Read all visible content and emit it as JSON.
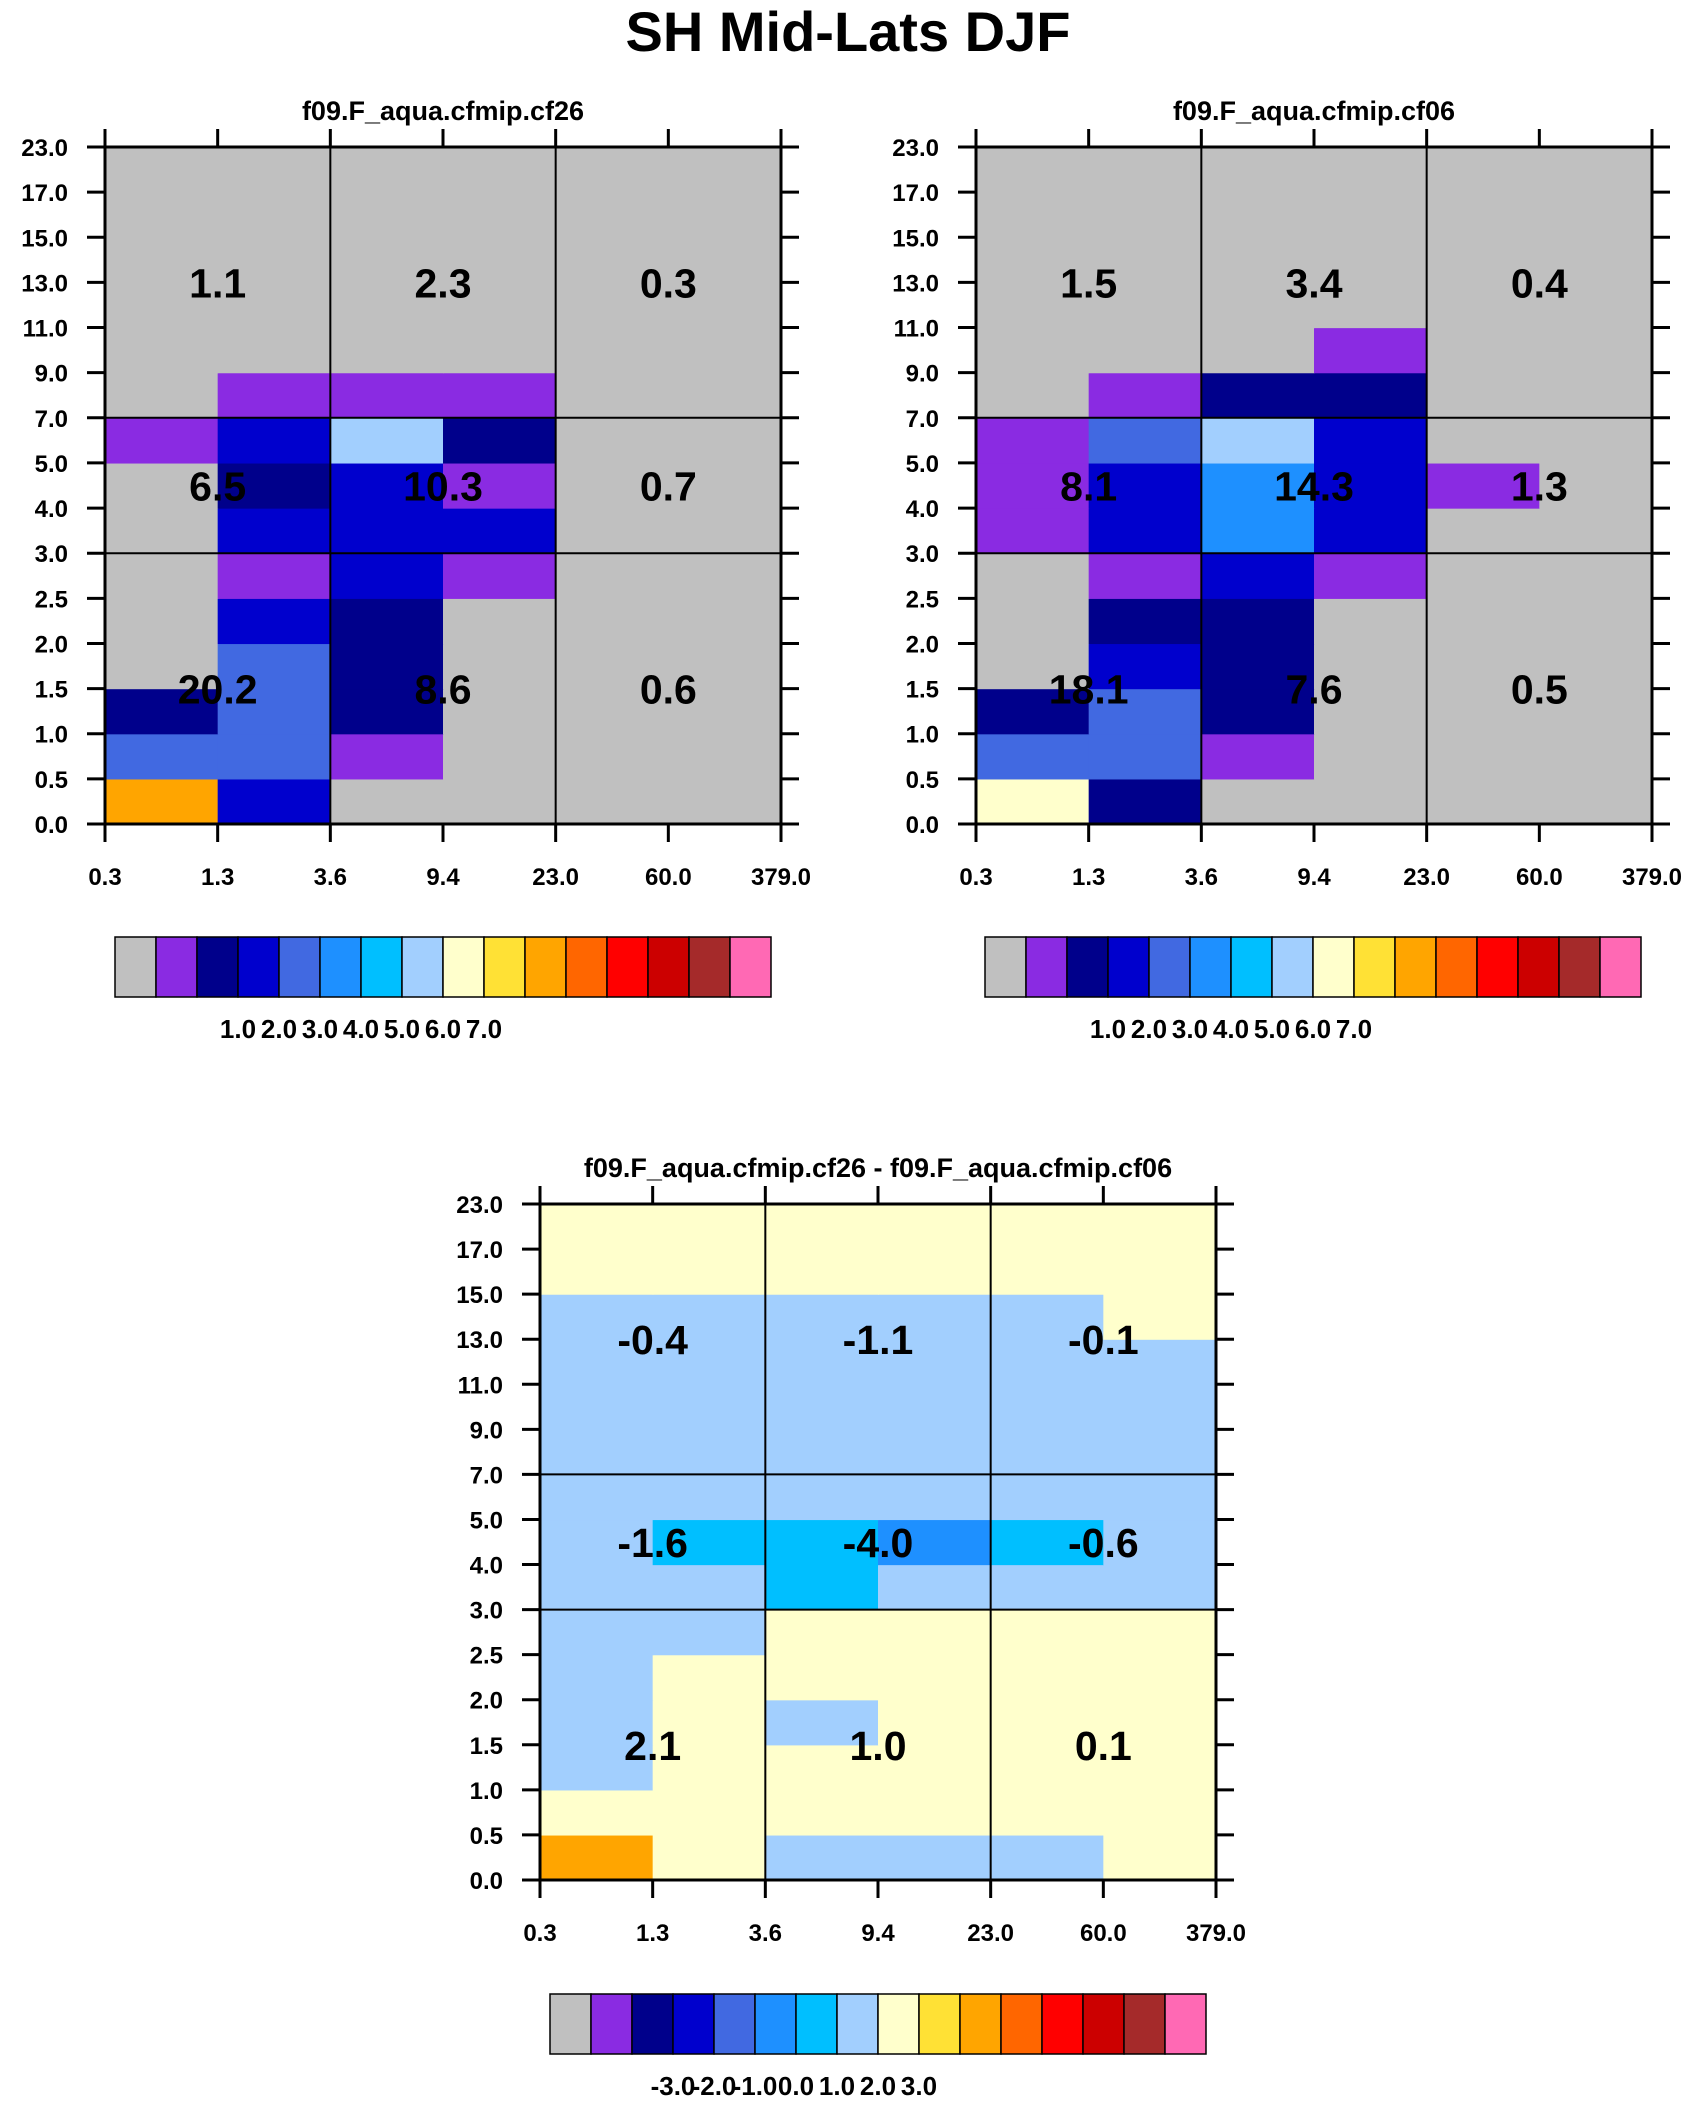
{
  "page": {
    "title": "SH Mid-Lats DJF"
  },
  "palette": [
    "#c0c0c0",
    "#8a2be2",
    "#00008b",
    "#0000cd",
    "#4169e1",
    "#1e90ff",
    "#00bfff",
    "#a2cffe",
    "#ffffcc",
    "#ffe135",
    "#ffa500",
    "#ff6600",
    "#ff0000",
    "#cc0000",
    "#a52a2a",
    "#ff69b4"
  ],
  "chart_data": [
    {
      "type": "heatmap",
      "title": "f09.F_aqua.cfmip.cf26",
      "x_ticks": [
        "0.3",
        "1.3",
        "3.6",
        "9.4",
        "23.0",
        "60.0",
        "379.0"
      ],
      "y_ticks": [
        "0.0",
        "0.5",
        "1.0",
        "1.5",
        "2.0",
        "2.5",
        "3.0",
        "4.0",
        "5.0",
        "7.0",
        "9.0",
        "11.0",
        "13.0",
        "15.0",
        "17.0",
        "23.0"
      ],
      "grid_rows": [
        "0.0-0.5",
        "0.5-1.0",
        "1.0-1.5",
        "1.5-2.0",
        "2.0-2.5",
        "2.5-3.0",
        "3.0-4.0",
        "4.0-5.0",
        "5.0-7.0",
        "7.0-9.0",
        "9.0-11.0",
        "11.0-13.0",
        "13.0-15.0",
        "15.0-17.0",
        "17.0-23.0"
      ],
      "color_index_grid": [
        [
          10,
          3,
          0,
          0,
          0,
          0
        ],
        [
          4,
          4,
          1,
          0,
          0,
          0
        ],
        [
          2,
          4,
          2,
          0,
          0,
          0
        ],
        [
          0,
          4,
          2,
          0,
          0,
          0
        ],
        [
          0,
          3,
          2,
          0,
          0,
          0
        ],
        [
          0,
          1,
          3,
          1,
          0,
          0
        ],
        [
          0,
          3,
          3,
          3,
          0,
          0
        ],
        [
          0,
          2,
          3,
          1,
          0,
          0
        ],
        [
          1,
          3,
          7,
          2,
          0,
          0
        ],
        [
          0,
          1,
          1,
          1,
          0,
          0
        ],
        [
          0,
          0,
          0,
          0,
          0,
          0
        ],
        [
          0,
          0,
          0,
          0,
          0,
          0
        ],
        [
          0,
          0,
          0,
          0,
          0,
          0
        ],
        [
          0,
          0,
          0,
          0,
          0,
          0
        ],
        [
          0,
          0,
          0,
          0,
          0,
          0
        ]
      ],
      "box_values": [
        [
          "1.1",
          "2.3",
          "0.3"
        ],
        [
          "6.5",
          "10.3",
          "0.7"
        ],
        [
          "20.2",
          "8.6",
          "0.6"
        ]
      ],
      "colorbar": {
        "labels": [
          "1.0",
          "2.0",
          "3.0",
          "4.0",
          "5.0",
          "6.0",
          "7.0"
        ]
      }
    },
    {
      "type": "heatmap",
      "title": "f09.F_aqua.cfmip.cf06",
      "x_ticks": [
        "0.3",
        "1.3",
        "3.6",
        "9.4",
        "23.0",
        "60.0",
        "379.0"
      ],
      "y_ticks": [
        "0.0",
        "0.5",
        "1.0",
        "1.5",
        "2.0",
        "2.5",
        "3.0",
        "4.0",
        "5.0",
        "7.0",
        "9.0",
        "11.0",
        "13.0",
        "15.0",
        "17.0",
        "23.0"
      ],
      "grid_rows": [
        "0.0-0.5",
        "0.5-1.0",
        "1.0-1.5",
        "1.5-2.0",
        "2.0-2.5",
        "2.5-3.0",
        "3.0-4.0",
        "4.0-5.0",
        "5.0-7.0",
        "7.0-9.0",
        "9.0-11.0",
        "11.0-13.0",
        "13.0-15.0",
        "15.0-17.0",
        "17.0-23.0"
      ],
      "color_index_grid": [
        [
          8,
          2,
          0,
          0,
          0,
          0
        ],
        [
          4,
          4,
          1,
          0,
          0,
          0
        ],
        [
          2,
          4,
          2,
          0,
          0,
          0
        ],
        [
          0,
          3,
          2,
          0,
          0,
          0
        ],
        [
          0,
          2,
          2,
          0,
          0,
          0
        ],
        [
          0,
          1,
          3,
          1,
          0,
          0
        ],
        [
          1,
          3,
          5,
          3,
          0,
          0
        ],
        [
          1,
          3,
          5,
          3,
          1,
          0
        ],
        [
          1,
          4,
          7,
          3,
          0,
          0
        ],
        [
          0,
          1,
          2,
          2,
          0,
          0
        ],
        [
          0,
          0,
          0,
          1,
          0,
          0
        ],
        [
          0,
          0,
          0,
          0,
          0,
          0
        ],
        [
          0,
          0,
          0,
          0,
          0,
          0
        ],
        [
          0,
          0,
          0,
          0,
          0,
          0
        ],
        [
          0,
          0,
          0,
          0,
          0,
          0
        ]
      ],
      "box_values": [
        [
          "1.5",
          "3.4",
          "0.4"
        ],
        [
          "8.1",
          "14.3",
          "1.3"
        ],
        [
          "18.1",
          "7.6",
          "0.5"
        ]
      ],
      "colorbar": {
        "labels": [
          "1.0",
          "2.0",
          "3.0",
          "4.0",
          "5.0",
          "6.0",
          "7.0"
        ]
      }
    },
    {
      "type": "heatmap",
      "title": "f09.F_aqua.cfmip.cf26 - f09.F_aqua.cfmip.cf06",
      "x_ticks": [
        "0.3",
        "1.3",
        "3.6",
        "9.4",
        "23.0",
        "60.0",
        "379.0"
      ],
      "y_ticks": [
        "0.0",
        "0.5",
        "1.0",
        "1.5",
        "2.0",
        "2.5",
        "3.0",
        "4.0",
        "5.0",
        "7.0",
        "9.0",
        "11.0",
        "13.0",
        "15.0",
        "17.0",
        "23.0"
      ],
      "grid_rows": [
        "0.0-0.5",
        "0.5-1.0",
        "1.0-1.5",
        "1.5-2.0",
        "2.0-2.5",
        "2.5-3.0",
        "3.0-4.0",
        "4.0-5.0",
        "5.0-7.0",
        "7.0-9.0",
        "9.0-11.0",
        "11.0-13.0",
        "13.0-15.0",
        "15.0-17.0",
        "17.0-23.0"
      ],
      "color_index_grid": [
        [
          10,
          8,
          7,
          7,
          7,
          8
        ],
        [
          8,
          8,
          8,
          8,
          8,
          8
        ],
        [
          7,
          8,
          8,
          8,
          8,
          8
        ],
        [
          7,
          8,
          7,
          8,
          8,
          8
        ],
        [
          7,
          8,
          8,
          8,
          8,
          8
        ],
        [
          7,
          7,
          8,
          8,
          8,
          8
        ],
        [
          7,
          7,
          6,
          7,
          7,
          7
        ],
        [
          7,
          6,
          6,
          5,
          6,
          7
        ],
        [
          7,
          7,
          7,
          7,
          7,
          7
        ],
        [
          7,
          7,
          7,
          7,
          7,
          7
        ],
        [
          7,
          7,
          7,
          7,
          7,
          7
        ],
        [
          7,
          7,
          7,
          7,
          7,
          7
        ],
        [
          7,
          7,
          7,
          7,
          7,
          8
        ],
        [
          8,
          8,
          8,
          8,
          8,
          8
        ],
        [
          8,
          8,
          8,
          8,
          8,
          8
        ]
      ],
      "box_values": [
        [
          "-0.4",
          "-1.1",
          "-0.1"
        ],
        [
          "-1.6",
          "-4.0",
          "-0.6"
        ],
        [
          "2.1",
          "1.0",
          "0.1"
        ]
      ],
      "colorbar": {
        "labels": [
          "-3.0",
          "-2.0",
          "-1.0",
          "0.0",
          "1.0",
          "2.0",
          "3.0"
        ]
      }
    }
  ]
}
